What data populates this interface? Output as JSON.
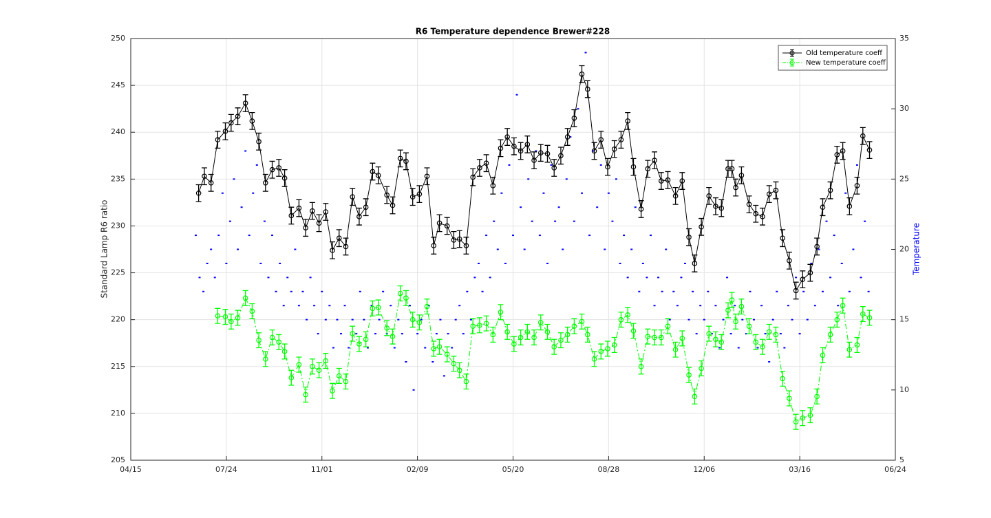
{
  "chart_data": {
    "type": "line",
    "title": "R6 Temperature dependence Brewer#228",
    "ylabel": "Standard Lamp R6 ratio",
    "y2label": "Temperature",
    "xlim": [
      0,
      800
    ],
    "xticks": [
      {
        "value": 0,
        "label": "04/15"
      },
      {
        "value": 100,
        "label": "07/24"
      },
      {
        "value": 200,
        "label": "11/01"
      },
      {
        "value": 300,
        "label": "02/09"
      },
      {
        "value": 400,
        "label": "05/20"
      },
      {
        "value": 500,
        "label": "08/28"
      },
      {
        "value": 600,
        "label": "12/06"
      },
      {
        "value": 700,
        "label": "03/16"
      },
      {
        "value": 800,
        "label": "06/24"
      }
    ],
    "ylim": [
      205,
      250
    ],
    "yticks": [
      205,
      210,
      215,
      220,
      225,
      230,
      235,
      240,
      245,
      250
    ],
    "y2lim": [
      5,
      35
    ],
    "y2ticks": [
      5,
      10,
      15,
      20,
      25,
      30,
      35
    ],
    "grid": true,
    "legend": "northeast",
    "series": [
      {
        "name": "Old temperature coeff",
        "color": "#000000",
        "line_style": "solid",
        "marker": "o",
        "error": 0.9,
        "x": [
          71,
          77,
          84,
          91,
          99,
          105,
          112,
          120,
          127,
          134,
          141,
          148,
          155,
          161,
          168,
          176,
          183,
          190,
          197,
          204,
          211,
          218,
          225,
          232,
          239,
          246,
          253,
          259,
          268,
          274,
          282,
          288,
          295,
          302,
          310,
          317,
          323,
          331,
          338,
          344,
          351,
          358,
          365,
          372,
          379,
          387,
          394,
          401,
          408,
          415,
          422,
          429,
          436,
          443,
          450,
          457,
          464,
          472,
          478,
          485,
          492,
          499,
          506,
          513,
          520,
          526,
          534,
          541,
          548,
          555,
          562,
          570,
          577,
          584,
          590,
          597,
          605,
          612,
          618,
          625,
          629,
          633,
          639,
          647,
          654,
          661,
          668,
          675,
          682,
          689,
          696,
          703,
          711,
          718,
          724,
          732,
          739,
          745,
          752,
          760,
          766,
          773
        ],
        "values": [
          233.5,
          235.3,
          234.6,
          239.2,
          240.1,
          241.0,
          241.7,
          243.1,
          241.2,
          239.0,
          234.6,
          236.0,
          236.2,
          235.1,
          231.1,
          231.9,
          229.8,
          231.6,
          230.3,
          231.5,
          227.4,
          228.7,
          227.8,
          233.1,
          231.0,
          232.0,
          235.8,
          235.4,
          233.3,
          232.2,
          237.2,
          236.9,
          233.1,
          233.4,
          235.3,
          227.9,
          230.3,
          230.0,
          228.5,
          228.6,
          227.9,
          235.2,
          236.2,
          236.7,
          234.3,
          238.3,
          239.5,
          238.5,
          238.0,
          238.7,
          237.0,
          237.8,
          237.7,
          236.2,
          237.5,
          239.5,
          241.5,
          246.2,
          244.6,
          238.0,
          239.2,
          236.3,
          238.2,
          239.2,
          241.2,
          236.3,
          231.8,
          236.1,
          237.0,
          234.8,
          234.9,
          233.2,
          234.8,
          228.8,
          226.0,
          229.9,
          233.2,
          232.1,
          231.9,
          236.1,
          236.1,
          234.1,
          235.4,
          232.3,
          231.3,
          231.0,
          233.4,
          233.8,
          228.7,
          226.3,
          223.1,
          224.3,
          225.0,
          227.8,
          232.0,
          233.8,
          237.6,
          238.0,
          232.1,
          234.3,
          239.6,
          238.1
        ]
      },
      {
        "name": "New temperature coeff",
        "color": "#00ff00",
        "line_style": "dashdot",
        "marker": "o",
        "error": 0.8,
        "x": [
          91,
          99,
          105,
          112,
          120,
          127,
          134,
          141,
          148,
          155,
          161,
          168,
          176,
          183,
          190,
          197,
          204,
          211,
          218,
          225,
          232,
          239,
          246,
          253,
          259,
          268,
          274,
          282,
          288,
          295,
          302,
          310,
          317,
          323,
          331,
          338,
          344,
          351,
          358,
          365,
          372,
          379,
          387,
          394,
          401,
          408,
          415,
          422,
          429,
          436,
          443,
          450,
          457,
          464,
          472,
          478,
          485,
          492,
          499,
          506,
          513,
          520,
          526,
          534,
          541,
          548,
          555,
          562,
          570,
          577,
          584,
          590,
          597,
          605,
          612,
          618,
          625,
          629,
          633,
          639,
          647,
          654,
          661,
          668,
          675,
          682,
          689,
          696,
          703,
          711,
          718,
          724,
          732,
          739,
          745,
          752,
          760,
          766,
          773
        ],
        "values": [
          220.4,
          220.3,
          219.8,
          220.2,
          222.3,
          220.9,
          217.8,
          215.8,
          218.1,
          217.6,
          216.6,
          213.8,
          215.2,
          212.0,
          215.0,
          214.6,
          215.6,
          212.4,
          214.0,
          213.4,
          218.5,
          217.4,
          217.9,
          221.2,
          221.3,
          219.1,
          218.2,
          222.8,
          222.3,
          220.0,
          219.7,
          221.4,
          216.9,
          217.1,
          216.3,
          215.3,
          214.6,
          213.4,
          219.3,
          219.4,
          219.6,
          218.4,
          220.8,
          218.7,
          217.4,
          218.1,
          218.7,
          218.1,
          219.7,
          218.7,
          217.1,
          217.8,
          218.4,
          219.3,
          219.8,
          218.4,
          215.8,
          216.6,
          216.9,
          217.3,
          220.0,
          220.5,
          218.8,
          215.0,
          218.2,
          218.1,
          218.1,
          219.3,
          216.8,
          218.0,
          214.1,
          211.8,
          214.8,
          218.5,
          217.9,
          217.6,
          221.0,
          222.1,
          219.8,
          221.4,
          219.3,
          217.6,
          217.1,
          218.7,
          218.4,
          213.7,
          211.6,
          209.1,
          209.5,
          209.8,
          211.8,
          216.2,
          218.4,
          220.0,
          221.5,
          216.8,
          217.3,
          220.6,
          220.2
        ]
      },
      {
        "color": "#0000ff",
        "line_style": "none",
        "marker": ".",
        "axis": "y2",
        "x": [
          68,
          72,
          76,
          80,
          84,
          88,
          92,
          96,
          100,
          104,
          108,
          112,
          116,
          120,
          124,
          128,
          132,
          136,
          140,
          144,
          148,
          152,
          156,
          160,
          164,
          168,
          172,
          176,
          180,
          184,
          188,
          192,
          196,
          200,
          204,
          208,
          212,
          216,
          220,
          224,
          228,
          232,
          236,
          240,
          244,
          248,
          252,
          256,
          260,
          264,
          268,
          272,
          276,
          280,
          284,
          288,
          292,
          296,
          300,
          304,
          308,
          312,
          316,
          320,
          324,
          328,
          332,
          336,
          340,
          344,
          348,
          352,
          356,
          360,
          364,
          368,
          372,
          376,
          380,
          384,
          388,
          392,
          396,
          400,
          404,
          408,
          412,
          416,
          420,
          424,
          428,
          432,
          436,
          440,
          444,
          448,
          452,
          456,
          460,
          464,
          468,
          472,
          476,
          480,
          484,
          488,
          492,
          496,
          500,
          504,
          508,
          512,
          516,
          520,
          524,
          528,
          532,
          536,
          540,
          544,
          548,
          552,
          556,
          560,
          564,
          568,
          572,
          576,
          580,
          584,
          588,
          592,
          596,
          600,
          604,
          608,
          612,
          616,
          620,
          624,
          628,
          632,
          636,
          640,
          644,
          648,
          652,
          656,
          660,
          664,
          668,
          672,
          676,
          680,
          684,
          688,
          692,
          696,
          700,
          704,
          708,
          712,
          716,
          720,
          724,
          728,
          732,
          736,
          740,
          744,
          748,
          752,
          756,
          760,
          764,
          768,
          772
        ],
        "values": [
          21,
          18,
          17,
          19,
          20,
          18,
          21,
          24,
          19,
          22,
          25,
          20,
          23,
          27,
          21,
          24,
          26,
          19,
          22,
          18,
          21,
          17,
          19,
          16,
          18,
          17,
          20,
          16,
          17,
          15,
          18,
          16,
          14,
          17,
          15,
          16,
          13,
          15,
          14,
          16,
          13,
          15,
          14,
          17,
          15,
          13,
          16,
          14,
          15,
          17,
          14,
          16,
          13,
          15,
          14,
          12,
          16,
          10,
          14,
          15,
          13,
          16,
          12,
          14,
          15,
          11,
          14,
          13,
          15,
          16,
          14,
          17,
          15,
          18,
          19,
          17,
          21,
          18,
          22,
          20,
          24,
          19,
          26,
          21,
          31,
          23,
          20,
          25,
          22,
          27,
          21,
          24,
          19,
          26,
          22,
          23,
          20,
          25,
          28,
          22,
          30,
          24,
          34,
          21,
          27,
          23,
          26,
          20,
          24,
          22,
          25,
          19,
          21,
          18,
          20,
          23,
          17,
          19,
          18,
          21,
          16,
          18,
          17,
          20,
          15,
          17,
          16,
          18,
          19,
          15,
          17,
          14,
          16,
          15,
          17,
          14,
          16,
          13,
          15,
          18,
          14,
          16,
          13,
          15,
          14,
          17,
          15,
          13,
          16,
          14,
          12,
          15,
          17,
          14,
          13,
          16,
          15,
          18,
          14,
          17,
          15,
          19,
          16,
          20,
          17,
          22,
          18,
          21,
          16,
          19,
          24,
          17,
          20,
          26,
          18,
          22,
          17
        ]
      }
    ]
  }
}
